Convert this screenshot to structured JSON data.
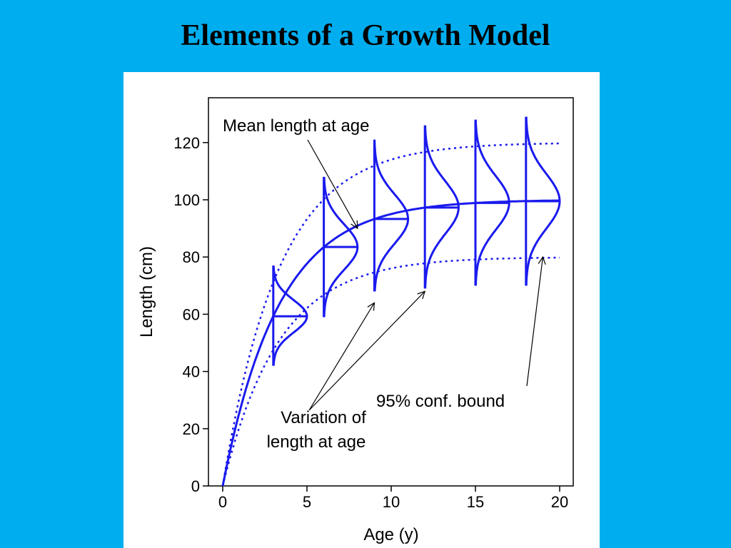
{
  "slide": {
    "title": "Elements of a Growth Model",
    "background_color": "#00AEEF"
  },
  "chart_data": {
    "type": "line",
    "xlabel": "Age (y)",
    "ylabel": "Length (cm)",
    "xlim": [
      0,
      20
    ],
    "ylim": [
      0,
      130
    ],
    "xticks": [
      0,
      5,
      10,
      15,
      20
    ],
    "yticks": [
      0,
      20,
      40,
      60,
      80,
      100,
      120
    ],
    "grid": false,
    "legend": "none",
    "series_color": "#1a1aee",
    "model": {
      "L_inf": 100,
      "k": 0.3,
      "t0": 0,
      "upper_bound_L_inf": 120,
      "lower_bound_L_inf": 80
    },
    "series": [
      {
        "style": "solid",
        "x": [
          0,
          2,
          4,
          6,
          8,
          10,
          12,
          14,
          16,
          18,
          20
        ],
        "y": [
          0,
          45.1,
          69.9,
          83.5,
          90.9,
          95.0,
          97.3,
          98.5,
          99.2,
          99.5,
          99.8
        ]
      },
      {
        "style": "dotted",
        "x": [
          0,
          2,
          4,
          6,
          8,
          10,
          12,
          14,
          16,
          18,
          20
        ],
        "y": [
          0,
          54.1,
          83.9,
          100.2,
          109.1,
          114.0,
          116.7,
          118.2,
          119.0,
          119.5,
          119.7
        ]
      },
      {
        "style": "dotted",
        "x": [
          0,
          2,
          4,
          6,
          8,
          10,
          12,
          14,
          16,
          18,
          20
        ],
        "y": [
          0,
          36.1,
          55.9,
          66.8,
          72.7,
          76.0,
          77.8,
          78.8,
          79.3,
          79.6,
          79.8
        ]
      }
    ],
    "distributions": {
      "ages": [
        3,
        6,
        9,
        12,
        15,
        18
      ],
      "mean": [
        59.3,
        83.5,
        93.3,
        97.3,
        98.9,
        99.5
      ],
      "lower": [
        42,
        59,
        68,
        69,
        70,
        70
      ],
      "upper": [
        77,
        108,
        121,
        126,
        128,
        129
      ]
    },
    "annotations": [
      {
        "text": "Mean length at age",
        "points_to": {
          "x": 8,
          "y": 90
        }
      },
      {
        "lines": [
          "Variation of",
          "length at age"
        ],
        "points_to": [
          {
            "x": 9,
            "y": 64
          },
          {
            "x": 12,
            "y": 68
          }
        ]
      },
      {
        "text": "95% conf. bound",
        "points_to": {
          "x": 19,
          "y": 80
        }
      }
    ]
  }
}
